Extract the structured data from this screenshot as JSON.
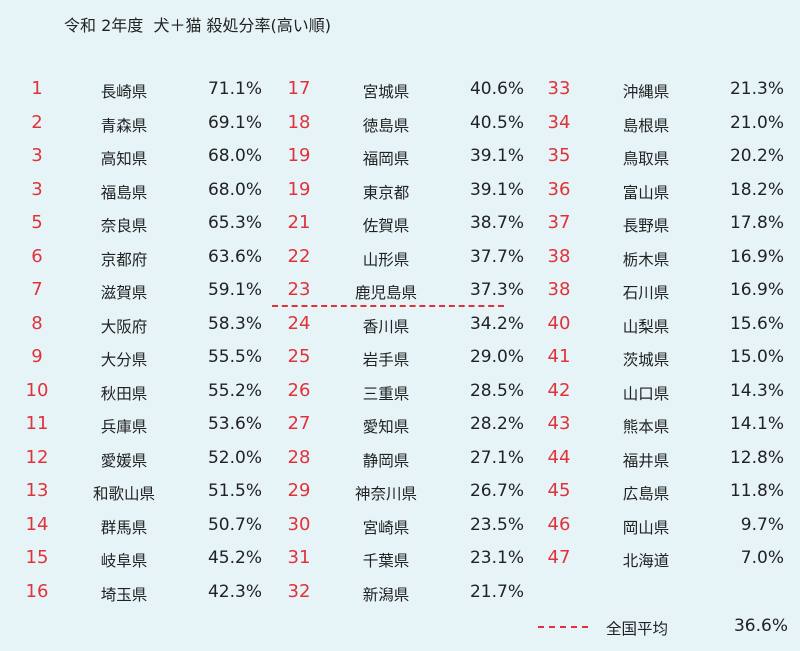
{
  "title": "令和 2年度  犬＋猫 殺処分率(高い順)",
  "colors": {
    "rank": "#e0323a",
    "average_line": "#e0323a",
    "background": "#e6f4f8"
  },
  "columns": [
    [
      {
        "rank": "1",
        "pref": "長崎県",
        "rate": "71.1%"
      },
      {
        "rank": "2",
        "pref": "青森県",
        "rate": "69.1%"
      },
      {
        "rank": "3",
        "pref": "高知県",
        "rate": "68.0%"
      },
      {
        "rank": "3",
        "pref": "福島県",
        "rate": "68.0%"
      },
      {
        "rank": "5",
        "pref": "奈良県",
        "rate": "65.3%"
      },
      {
        "rank": "6",
        "pref": "京都府",
        "rate": "63.6%"
      },
      {
        "rank": "7",
        "pref": "滋賀県",
        "rate": "59.1%"
      },
      {
        "rank": "8",
        "pref": "大阪府",
        "rate": "58.3%"
      },
      {
        "rank": "9",
        "pref": "大分県",
        "rate": "55.5%"
      },
      {
        "rank": "10",
        "pref": "秋田県",
        "rate": "55.2%"
      },
      {
        "rank": "11",
        "pref": "兵庫県",
        "rate": "53.6%"
      },
      {
        "rank": "12",
        "pref": "愛媛県",
        "rate": "52.0%"
      },
      {
        "rank": "13",
        "pref": "和歌山県",
        "rate": "51.5%"
      },
      {
        "rank": "14",
        "pref": "群馬県",
        "rate": "50.7%"
      },
      {
        "rank": "15",
        "pref": "岐阜県",
        "rate": "45.2%"
      },
      {
        "rank": "16",
        "pref": "埼玉県",
        "rate": "42.3%"
      }
    ],
    [
      {
        "rank": "17",
        "pref": "宮城県",
        "rate": "40.6%"
      },
      {
        "rank": "18",
        "pref": "徳島県",
        "rate": "40.5%"
      },
      {
        "rank": "19",
        "pref": "福岡県",
        "rate": "39.1%"
      },
      {
        "rank": "19",
        "pref": "東京都",
        "rate": "39.1%"
      },
      {
        "rank": "21",
        "pref": "佐賀県",
        "rate": "38.7%"
      },
      {
        "rank": "22",
        "pref": "山形県",
        "rate": "37.7%"
      },
      {
        "rank": "23",
        "pref": "鹿児島県",
        "rate": "37.3%"
      },
      {
        "rank": "24",
        "pref": "香川県",
        "rate": "34.2%"
      },
      {
        "rank": "25",
        "pref": "岩手県",
        "rate": "29.0%"
      },
      {
        "rank": "26",
        "pref": "三重県",
        "rate": "28.5%"
      },
      {
        "rank": "27",
        "pref": "愛知県",
        "rate": "28.2%"
      },
      {
        "rank": "28",
        "pref": "静岡県",
        "rate": "27.1%"
      },
      {
        "rank": "29",
        "pref": "神奈川県",
        "rate": "26.7%"
      },
      {
        "rank": "30",
        "pref": "宮崎県",
        "rate": "23.5%"
      },
      {
        "rank": "31",
        "pref": "千葉県",
        "rate": "23.1%"
      },
      {
        "rank": "32",
        "pref": "新潟県",
        "rate": "21.7%"
      }
    ],
    [
      {
        "rank": "33",
        "pref": "沖縄県",
        "rate": "21.3%"
      },
      {
        "rank": "34",
        "pref": "島根県",
        "rate": "21.0%"
      },
      {
        "rank": "35",
        "pref": "鳥取県",
        "rate": "20.2%"
      },
      {
        "rank": "36",
        "pref": "富山県",
        "rate": "18.2%"
      },
      {
        "rank": "37",
        "pref": "長野県",
        "rate": "17.8%"
      },
      {
        "rank": "38",
        "pref": "栃木県",
        "rate": "16.9%"
      },
      {
        "rank": "38",
        "pref": "石川県",
        "rate": "16.9%"
      },
      {
        "rank": "40",
        "pref": "山梨県",
        "rate": "15.6%"
      },
      {
        "rank": "41",
        "pref": "茨城県",
        "rate": "15.0%"
      },
      {
        "rank": "42",
        "pref": "山口県",
        "rate": "14.3%"
      },
      {
        "rank": "43",
        "pref": "熊本県",
        "rate": "14.1%"
      },
      {
        "rank": "44",
        "pref": "福井県",
        "rate": "12.8%"
      },
      {
        "rank": "45",
        "pref": "広島県",
        "rate": "11.8%"
      },
      {
        "rank": "46",
        "pref": "岡山県",
        "rate": "9.7%"
      },
      {
        "rank": "47",
        "pref": "北海道",
        "rate": "7.0%"
      }
    ]
  ],
  "legend": {
    "label": "全国平均",
    "value": "36.6%"
  }
}
